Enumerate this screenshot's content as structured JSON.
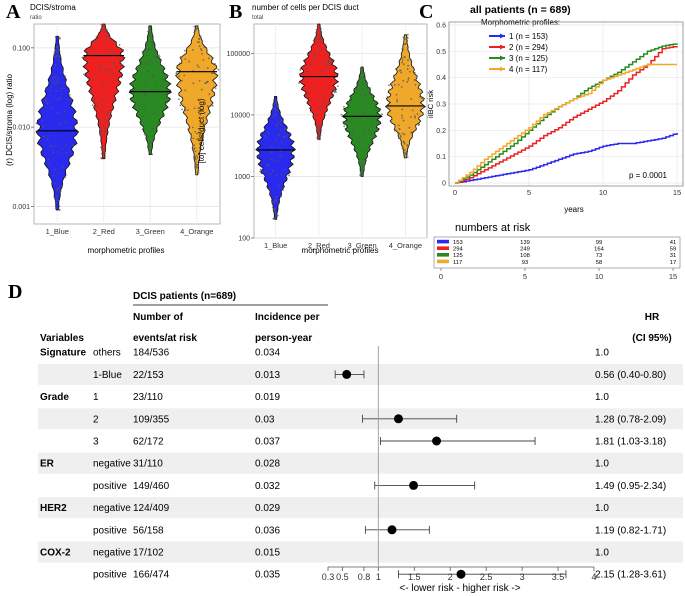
{
  "panels": {
    "a": "A",
    "b": "B",
    "c": "C",
    "d": "D"
  },
  "chart_data": [
    {
      "type": "violin",
      "title": "DCIS/stroma",
      "subtitle": "ratio",
      "ylabel": "(r) DCIS/stroma (log) ratio",
      "xlabel": "morphometric profiles",
      "categories": [
        "1_Blue",
        "2_Red",
        "3_Green",
        "4_Orange"
      ],
      "colors": [
        "#2a2aee",
        "#ee2020",
        "#2a8a22",
        "#f0a82a"
      ],
      "ylim": [
        0.0006,
        0.2
      ],
      "yscale": "log",
      "yticks": [
        0.001,
        0.01,
        0.1
      ],
      "ytick_labels": [
        "0.001",
        "0.010",
        "0.100"
      ],
      "medians": [
        0.009,
        0.08,
        0.028,
        0.05
      ],
      "ranges": [
        [
          0.0009,
          0.14
        ],
        [
          0.004,
          0.2
        ],
        [
          0.0045,
          0.19
        ],
        [
          0.0025,
          0.19
        ]
      ]
    },
    {
      "type": "violin",
      "title": "number of cells per DCIS duct",
      "subtitle": "total",
      "ylabel": "[to] cells/duct (log)",
      "xlabel": "morphometric profiles",
      "categories": [
        "1_Blue",
        "2_Red",
        "3_Green",
        "4_Orange"
      ],
      "colors": [
        "#2a2aee",
        "#ee2020",
        "#2a8a22",
        "#f0a82a"
      ],
      "ylim": [
        100,
        300000
      ],
      "yscale": "log",
      "yticks": [
        100,
        1000,
        10000,
        100000
      ],
      "ytick_labels": [
        "100",
        "1000",
        "10000",
        "100000"
      ],
      "medians": [
        2700,
        42000,
        9500,
        14000
      ],
      "ranges": [
        [
          200,
          20000
        ],
        [
          4000,
          300000
        ],
        [
          1000,
          60000
        ],
        [
          2000,
          200000
        ]
      ]
    },
    {
      "type": "line",
      "title": "all patients (n = 689)",
      "legend_title": "Morphometric profiles:",
      "ylabel": "iIBC risk",
      "xlabel": "years",
      "xlim": [
        0,
        15
      ],
      "ylim": [
        0,
        0.6
      ],
      "xticks": [
        0,
        5,
        10,
        15
      ],
      "yticks": [
        0,
        0.1,
        0.2,
        0.3,
        0.4,
        0.5,
        0.6
      ],
      "ytick_labels": [
        "0",
        "0.1",
        "0.2",
        "0.3",
        "0.4",
        "0.5",
        "0.6"
      ],
      "p_value": "p = 0.0001",
      "series": [
        {
          "name": "1 (n = 153)",
          "color": "#2a2aee",
          "x": [
            0,
            1,
            2,
            3,
            4,
            5,
            6,
            7,
            8,
            9,
            10,
            11,
            12,
            13,
            14,
            15
          ],
          "y": [
            0,
            0.01,
            0.02,
            0.03,
            0.04,
            0.05,
            0.07,
            0.09,
            0.11,
            0.12,
            0.14,
            0.15,
            0.15,
            0.16,
            0.17,
            0.19
          ]
        },
        {
          "name": "2 (n = 294)",
          "color": "#ee2020",
          "x": [
            0,
            1,
            2,
            3,
            4,
            5,
            6,
            7,
            8,
            9,
            10,
            11,
            12,
            13,
            14,
            15
          ],
          "y": [
            0,
            0.02,
            0.05,
            0.08,
            0.11,
            0.14,
            0.18,
            0.21,
            0.25,
            0.28,
            0.31,
            0.35,
            0.41,
            0.45,
            0.51,
            0.52
          ]
        },
        {
          "name": "3 (n = 125)",
          "color": "#2a8a22",
          "x": [
            0,
            1,
            2,
            3,
            4,
            5,
            6,
            7,
            8,
            9,
            10,
            11,
            12,
            13,
            14,
            15
          ],
          "y": [
            0,
            0.03,
            0.07,
            0.11,
            0.15,
            0.2,
            0.25,
            0.29,
            0.32,
            0.36,
            0.39,
            0.42,
            0.46,
            0.5,
            0.52,
            0.53
          ]
        },
        {
          "name": "4 (n = 117)",
          "color": "#f0a82a",
          "x": [
            0,
            1,
            2,
            3,
            4,
            5,
            6,
            7,
            8,
            9,
            10,
            11,
            12,
            13,
            14,
            15
          ],
          "y": [
            0,
            0.04,
            0.09,
            0.13,
            0.17,
            0.21,
            0.26,
            0.29,
            0.32,
            0.34,
            0.39,
            0.41,
            0.43,
            0.45,
            0.45,
            0.45
          ]
        }
      ],
      "risk_table": {
        "title": "numbers at risk",
        "ticks": [
          "0",
          "5",
          "10",
          "15"
        ],
        "rows": [
          [
            "153",
            "139",
            "99",
            "41"
          ],
          [
            "294",
            "249",
            "164",
            "59"
          ],
          [
            "125",
            "108",
            "73",
            "31"
          ],
          [
            "117",
            "93",
            "58",
            "17"
          ]
        ]
      }
    },
    {
      "type": "forest",
      "header": {
        "group": "DCIS patients (n=689)",
        "variables": "Variables",
        "events_line1": "Number of",
        "events_line2": "events/at risk",
        "incidence_line1": "Incidence per",
        "incidence_line2": "person-year",
        "hr_line1": "HR",
        "hr_line2": "(CI 95%)"
      },
      "xlim": [
        0.3,
        4
      ],
      "xticks": [
        0.3,
        0.5,
        0.8,
        1,
        1.5,
        2,
        2.5,
        3,
        3.5,
        4
      ],
      "xtick_labels": [
        "0.3",
        "0.5",
        "0.8",
        "1",
        "1.5",
        "2",
        "2.5",
        "3",
        "3.5",
        "4"
      ],
      "xlabel": "<- lower risk  -  higher risk ->",
      "rows": [
        {
          "variable": "Signature",
          "level": "others",
          "events": "184/536",
          "incidence": "0.034",
          "hr_text": "1.0",
          "hr": null,
          "lo": null,
          "hi": null
        },
        {
          "variable": "",
          "level": "1-Blue",
          "events": "22/153",
          "incidence": "0.013",
          "hr_text": "0.56 (0.40-0.80)",
          "hr": 0.56,
          "lo": 0.4,
          "hi": 0.8
        },
        {
          "variable": "Grade",
          "level": "1",
          "events": "23/110",
          "incidence": "0.019",
          "hr_text": "1.0",
          "hr": null,
          "lo": null,
          "hi": null
        },
        {
          "variable": "",
          "level": "2",
          "events": "109/355",
          "incidence": "0.03",
          "hr_text": "1.28 (0.78-2.09)",
          "hr": 1.28,
          "lo": 0.78,
          "hi": 2.09
        },
        {
          "variable": "",
          "level": "3",
          "events": "62/172",
          "incidence": "0.037",
          "hr_text": "1.81 (1.03-3.18)",
          "hr": 1.81,
          "lo": 1.03,
          "hi": 3.18
        },
        {
          "variable": "ER",
          "level": "negative",
          "events": "31/110",
          "incidence": "0.028",
          "hr_text": "1.0",
          "hr": null,
          "lo": null,
          "hi": null
        },
        {
          "variable": "",
          "level": "positive",
          "events": "149/460",
          "incidence": "0.032",
          "hr_text": "1.49 (0.95-2.34)",
          "hr": 1.49,
          "lo": 0.95,
          "hi": 2.34
        },
        {
          "variable": "HER2",
          "level": "negative",
          "events": "124/409",
          "incidence": "0.029",
          "hr_text": "1.0",
          "hr": null,
          "lo": null,
          "hi": null
        },
        {
          "variable": "",
          "level": "positive",
          "events": "56/158",
          "incidence": "0.036",
          "hr_text": "1.19 (0.82-1.71)",
          "hr": 1.19,
          "lo": 0.82,
          "hi": 1.71
        },
        {
          "variable": "COX-2",
          "level": "negative",
          "events": "17/102",
          "incidence": "0.015",
          "hr_text": "1.0",
          "hr": null,
          "lo": null,
          "hi": null
        },
        {
          "variable": "",
          "level": "positive",
          "events": "166/474",
          "incidence": "0.035",
          "hr_text": "2.15 (1.28-3.61)",
          "hr": 2.15,
          "lo": 1.28,
          "hi": 3.61
        }
      ]
    }
  ]
}
